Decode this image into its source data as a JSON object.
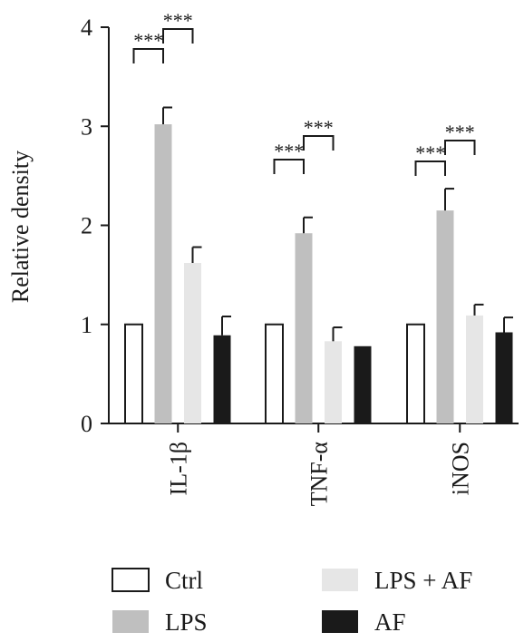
{
  "chart_data": {
    "type": "bar",
    "title": "",
    "ylabel": "Relative density",
    "xlabel": "",
    "ylim": [
      0,
      4
    ],
    "yticks": [
      "0",
      "1",
      "2",
      "3",
      "4"
    ],
    "categories": [
      "IL-1β",
      "TNF-α",
      "iNOS"
    ],
    "series": [
      {
        "name": "Ctrl",
        "color": "#ffffff",
        "values": [
          1.0,
          1.0,
          1.0
        ],
        "errors": [
          0,
          0,
          0
        ]
      },
      {
        "name": "LPS",
        "color": "#bfbfbf",
        "values": [
          3.02,
          1.92,
          2.15
        ],
        "errors": [
          0.17,
          0.16,
          0.22
        ]
      },
      {
        "name": "LPS + AF",
        "color": "#e6e6e6",
        "values": [
          1.62,
          0.83,
          1.09
        ],
        "errors": [
          0.16,
          0.14,
          0.11
        ]
      },
      {
        "name": "AF",
        "color": "#1a1a1a",
        "values": [
          0.89,
          0.78,
          0.92
        ],
        "errors": [
          0.19,
          0,
          0.15
        ]
      }
    ],
    "significance": [
      {
        "category": 0,
        "pair": [
          0,
          1
        ],
        "label": "***"
      },
      {
        "category": 0,
        "pair": [
          1,
          2
        ],
        "label": "***"
      },
      {
        "category": 1,
        "pair": [
          0,
          1
        ],
        "label": "***"
      },
      {
        "category": 1,
        "pair": [
          1,
          2
        ],
        "label": "***"
      },
      {
        "category": 2,
        "pair": [
          0,
          1
        ],
        "label": "***"
      },
      {
        "category": 2,
        "pair": [
          1,
          2
        ],
        "label": "***"
      }
    ],
    "legend_position": "bottom"
  }
}
